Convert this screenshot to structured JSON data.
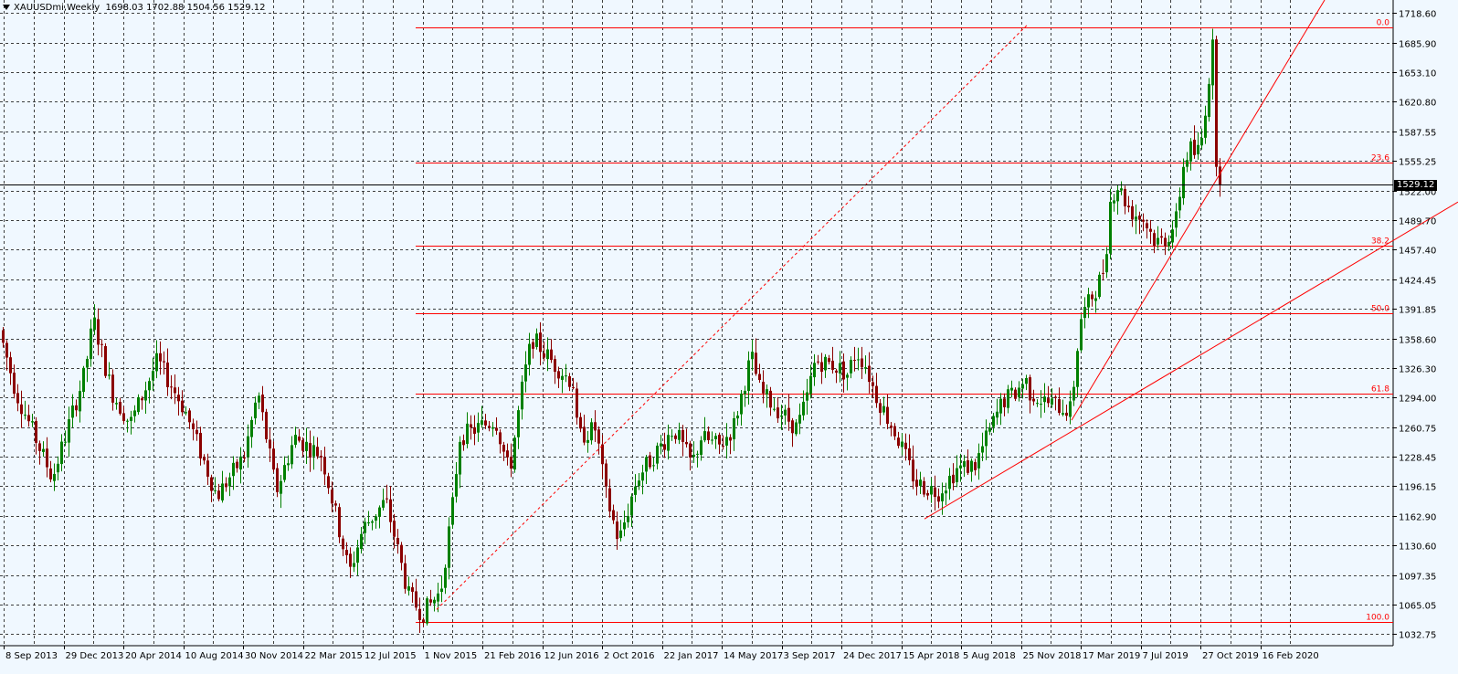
{
  "header": {
    "symbol": "XAUUSDmi,Weekly",
    "ohlc": "1698.03 1702.88 1504.56 1529.12"
  },
  "current_price_label": "1529.12",
  "colors": {
    "background": "#F0F8FF",
    "grid": "#000000",
    "bull_candle": "#008000",
    "bear_candle": "#8B0000",
    "fib": "#FF0000",
    "trendline": "#FF0000",
    "price_line": "#000000"
  },
  "chart_data": {
    "type": "candlestick",
    "timeframe": "Weekly",
    "y_range": [
      1020,
      1733
    ],
    "y_ticks": [
      "1718.60",
      "1685.90",
      "1653.10",
      "1620.80",
      "1587.55",
      "1555.25",
      "1522.00",
      "1489.70",
      "1457.40",
      "1424.45",
      "1391.85",
      "1358.60",
      "1326.30",
      "1294.00",
      "1260.75",
      "1228.45",
      "1196.15",
      "1162.90",
      "1130.60",
      "1097.35",
      "1065.05",
      "1032.75"
    ],
    "x_labels": [
      "8 Sep 2013",
      "29 Dec 2013",
      "20 Apr 2014",
      "10 Aug 2014",
      "30 Nov 2014",
      "22 Mar 2015",
      "12 Jul 2015",
      "1 Nov 2015",
      "21 Feb 2016",
      "12 Jun 2016",
      "2 Oct 2016",
      "22 Jan 2017",
      "14 May 2017",
      "3 Sep 2017",
      "24 Dec 2017",
      "15 Apr 2018",
      "5 Aug 2018",
      "25 Nov 2018",
      "17 Mar 2019",
      "7 Jul 2019",
      "27 Oct 2019",
      "16 Feb 2020"
    ],
    "label_step_bars": 16,
    "last_close": 1529.12,
    "fibonacci": {
      "start_label": "1 Nov 2015",
      "levels": [
        {
          "label": "0.0",
          "price": 1702.9
        },
        {
          "label": "23.6",
          "price": 1553.8
        },
        {
          "label": "38.2",
          "price": 1461.5
        },
        {
          "label": "50.0",
          "price": 1387.0
        },
        {
          "label": "61.8",
          "price": 1298.4
        },
        {
          "label": "100.0",
          "price": 1046.2
        }
      ]
    },
    "trendlines": [
      {
        "from": {
          "bar": 1012,
          "price": 1160
        },
        "to": {
          "bar": 1596,
          "price": 1510
        },
        "style": "solid"
      },
      {
        "from": {
          "bar": 1173,
          "price": 1269
        },
        "to": {
          "bar": 1450,
          "price": 1733
        },
        "style": "solid"
      },
      {
        "from": {
          "bar": 478,
          "price": 1060
        },
        "to": {
          "bar": 1125,
          "price": 1706
        },
        "style": "dashed"
      }
    ],
    "keypoints": [
      [
        0,
        1376
      ],
      [
        20,
        1300
      ],
      [
        60,
        1205
      ],
      [
        95,
        1320
      ],
      [
        105,
        1380
      ],
      [
        125,
        1300
      ],
      [
        145,
        1265
      ],
      [
        175,
        1335
      ],
      [
        205,
        1280
      ],
      [
        240,
        1185
      ],
      [
        270,
        1230
      ],
      [
        285,
        1300
      ],
      [
        305,
        1190
      ],
      [
        325,
        1250
      ],
      [
        355,
        1230
      ],
      [
        385,
        1100
      ],
      [
        400,
        1150
      ],
      [
        425,
        1180
      ],
      [
        450,
        1075
      ],
      [
        465,
        1055
      ],
      [
        485,
        1080
      ],
      [
        500,
        1190
      ],
      [
        505,
        1250
      ],
      [
        545,
        1270
      ],
      [
        560,
        1210
      ],
      [
        575,
        1310
      ],
      [
        585,
        1360
      ],
      [
        610,
        1330
      ],
      [
        630,
        1310
      ],
      [
        635,
        1250
      ],
      [
        655,
        1260
      ],
      [
        665,
        1190
      ],
      [
        680,
        1135
      ],
      [
        700,
        1205
      ],
      [
        740,
        1260
      ],
      [
        760,
        1220
      ],
      [
        770,
        1250
      ],
      [
        790,
        1240
      ],
      [
        805,
        1260
      ],
      [
        815,
        1300
      ],
      [
        825,
        1340
      ],
      [
        835,
        1300
      ],
      [
        850,
        1285
      ],
      [
        875,
        1260
      ],
      [
        885,
        1290
      ],
      [
        895,
        1335
      ],
      [
        915,
        1330
      ],
      [
        930,
        1320
      ],
      [
        940,
        1345
      ],
      [
        950,
        1330
      ],
      [
        960,
        1300
      ],
      [
        985,
        1250
      ],
      [
        1005,
        1200
      ],
      [
        1015,
        1195
      ],
      [
        1030,
        1190
      ],
      [
        1050,
        1215
      ],
      [
        1070,
        1220
      ],
      [
        1085,
        1255
      ],
      [
        1100,
        1290
      ],
      [
        1115,
        1300
      ],
      [
        1125,
        1315
      ],
      [
        1130,
        1300
      ],
      [
        1145,
        1290
      ],
      [
        1160,
        1285
      ],
      [
        1175,
        1280
      ],
      [
        1185,
        1380
      ],
      [
        1195,
        1400
      ],
      [
        1205,
        1420
      ],
      [
        1212,
        1440
      ],
      [
        1218,
        1510
      ],
      [
        1225,
        1530
      ],
      [
        1240,
        1500
      ],
      [
        1255,
        1490
      ],
      [
        1268,
        1465
      ],
      [
        1280,
        1470
      ],
      [
        1290,
        1490
      ],
      [
        1298,
        1550
      ],
      [
        1305,
        1570
      ],
      [
        1312,
        1560
      ],
      [
        1318,
        1580
      ],
      [
        1325,
        1640
      ],
      [
        1330,
        1680
      ],
      [
        1335,
        1529
      ]
    ]
  }
}
